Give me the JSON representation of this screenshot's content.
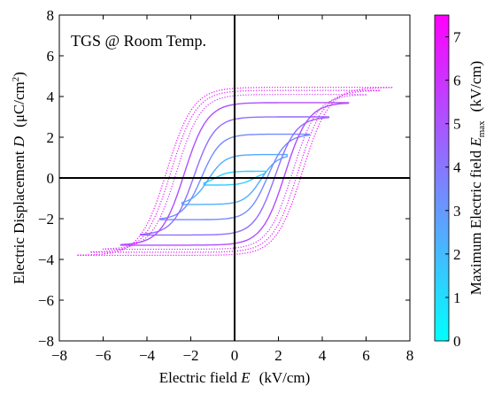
{
  "chart_data": {
    "type": "line",
    "annotation": "TGS @ Room Temp.",
    "xlabel": "Electric field E (kV/cm)",
    "ylabel": "Electric Displacement D (μC/cm²)",
    "xlim": [
      -8,
      8
    ],
    "ylim": [
      -8,
      8
    ],
    "xticks": [
      -8,
      -6,
      -4,
      -2,
      0,
      2,
      4,
      6,
      8
    ],
    "yticks": [
      -8,
      -6,
      -4,
      -2,
      0,
      2,
      4,
      6,
      8
    ],
    "zero_lines": true,
    "grid": false,
    "colorbar": {
      "label": "Maximum Electric field E_max (kV/cm)",
      "label_main": "Maximum Electric field ",
      "label_symbol": "E",
      "label_sub": "max",
      "label_unit": "(kV/cm)",
      "range": [
        0,
        7.5
      ],
      "ticks": [
        0,
        1,
        2,
        3,
        4,
        5,
        6,
        7
      ],
      "colormap": "cool",
      "color_low": "#00ffff",
      "color_high": "#ff00ff"
    },
    "loops": [
      {
        "emax": 1.4,
        "d_top": 0.33,
        "d_bottom": -0.35,
        "ec": 0.9,
        "width": 0.6
      },
      {
        "emax": 2.4,
        "d_top": 1.15,
        "d_bottom": -1.3,
        "ec": 1.2,
        "width": 0.75
      },
      {
        "emax": 3.4,
        "d_top": 2.15,
        "d_bottom": -2.05,
        "ec": 1.5,
        "width": 0.85
      },
      {
        "emax": 4.3,
        "d_top": 3.0,
        "d_bottom": -2.8,
        "ec": 1.85,
        "width": 0.95
      },
      {
        "emax": 5.2,
        "d_top": 3.7,
        "d_bottom": -3.3,
        "ec": 2.3,
        "width": 1.05
      },
      {
        "emax": 6.0,
        "d_top": 4.1,
        "d_bottom": -3.5,
        "ec": 2.65,
        "width": 1.1
      },
      {
        "emax": 6.6,
        "d_top": 4.3,
        "d_bottom": -3.65,
        "ec": 2.9,
        "width": 1.15
      },
      {
        "emax": 7.2,
        "d_top": 4.45,
        "d_bottom": -3.8,
        "ec": 3.1,
        "width": 1.2
      }
    ]
  }
}
